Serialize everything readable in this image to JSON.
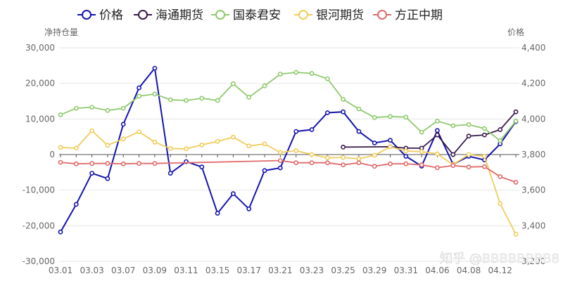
{
  "chart_data": {
    "type": "line",
    "legend_position": "top-left",
    "grid": "horizontal",
    "y_left": {
      "label": "净持仓量",
      "ticks": [
        30000,
        20000,
        10000,
        0,
        -10000,
        -20000,
        -30000
      ],
      "tick_labels": [
        "30,000",
        "20,000",
        "10,000",
        "0",
        "-10,000",
        "-20,000",
        "-30,000"
      ],
      "range": [
        -30000,
        30000
      ]
    },
    "y_right": {
      "label": "价格",
      "ticks": [
        4400,
        4200,
        4000,
        3800,
        3600,
        3400,
        3200
      ],
      "tick_labels": [
        "4,400",
        "4,200",
        "4,000",
        "3,800",
        "3,600",
        "3,400",
        "3,200"
      ],
      "range": [
        3200,
        4400
      ]
    },
    "x": [
      "03.01",
      "03.02",
      "03.03",
      "03.04",
      "03.07",
      "03.08",
      "03.09",
      "03.10",
      "03.11",
      "03.14",
      "03.15",
      "03.16",
      "03.17",
      "03.18",
      "03.21",
      "03.22",
      "03.23",
      "03.24",
      "03.25",
      "03.28",
      "03.29",
      "03.30",
      "03.31",
      "04.01",
      "04.06",
      "04.07",
      "04.08",
      "04.11",
      "04.12",
      "04.13"
    ],
    "x_tick_labels": [
      "03.01",
      "03.03",
      "03.07",
      "03.09",
      "03.11",
      "03.15",
      "03.17",
      "03.21",
      "03.23",
      "03.25",
      "03.29",
      "03.31",
      "04.06",
      "04.08",
      "04.12"
    ],
    "series": [
      {
        "name": "价格",
        "color": "#1515b0",
        "axis": "right",
        "values": [
          3365,
          3520,
          3695,
          3665,
          3970,
          4175,
          4285,
          3695,
          3760,
          3730,
          3470,
          3580,
          3495,
          3710,
          3725,
          3930,
          3940,
          4035,
          4040,
          3930,
          3865,
          3880,
          3790,
          3735,
          3935,
          3745,
          3790,
          3770,
          3860,
          3985
        ]
      },
      {
        "name": "海通期货",
        "color": "#3a1a4a",
        "axis": "left",
        "values": [
          null,
          null,
          null,
          null,
          null,
          null,
          null,
          null,
          null,
          null,
          null,
          null,
          null,
          null,
          null,
          null,
          null,
          null,
          2100,
          null,
          null,
          2200,
          1800,
          1800,
          5500,
          0,
          5200,
          5500,
          7000,
          12000
        ]
      },
      {
        "name": "国泰君安",
        "color": "#8fca6e",
        "axis": "left",
        "values": [
          11200,
          13000,
          13300,
          12400,
          13000,
          16400,
          17000,
          15400,
          15200,
          15800,
          15200,
          19900,
          16100,
          19300,
          22600,
          23100,
          22800,
          21300,
          15500,
          12800,
          10400,
          10700,
          10500,
          6300,
          9400,
          8100,
          8400,
          7300,
          3900,
          9400
        ]
      },
      {
        "name": "银河期货",
        "color": "#f0cc5a",
        "axis": "left",
        "values": [
          2000,
          1800,
          6700,
          2600,
          4400,
          6400,
          3500,
          1700,
          1600,
          2700,
          3700,
          4900,
          2400,
          3000,
          600,
          1100,
          0,
          -900,
          -800,
          -1200,
          -200,
          2200,
          1000,
          800,
          200,
          -2800,
          0,
          -500,
          -13800,
          -22400
        ]
      },
      {
        "name": "方正中期",
        "color": "#e06b6b",
        "axis": "left",
        "values": [
          -2200,
          -2600,
          -2500,
          -2500,
          -2600,
          -2500,
          -2500,
          null,
          null,
          null,
          null,
          null,
          null,
          null,
          -1700,
          -2300,
          -2300,
          -2300,
          -2900,
          -2300,
          -3300,
          -2600,
          -2600,
          -2900,
          -3700,
          -3100,
          -3500,
          -3400,
          -6200,
          -7800
        ]
      }
    ],
    "watermark": "知乎 @BBBBBBBB8"
  }
}
